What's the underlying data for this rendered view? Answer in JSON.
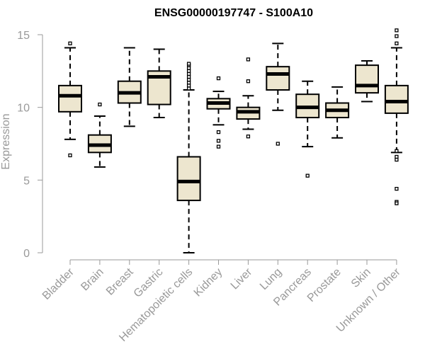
{
  "chart_data": {
    "type": "boxplot",
    "title": "ENSG00000197747 - S100A10",
    "xlabel": "",
    "ylabel": "Expression",
    "ylim": [
      0,
      15
    ],
    "yticks": [
      0,
      5,
      10,
      15
    ],
    "box_fill": "#ede6cf",
    "median_color": "#000000",
    "axis_color": "#999999",
    "categories": [
      "Bladder",
      "Brain",
      "Breast",
      "Gastric",
      "Hematopoietic cells",
      "Kidney",
      "Liver",
      "Lung",
      "Pancreas",
      "Prostate",
      "Skin",
      "Unknown / Other"
    ],
    "boxes": [
      {
        "name": "Bladder",
        "min": 7.8,
        "q1": 9.7,
        "median": 10.8,
        "q3": 11.5,
        "max": 14.1,
        "outliers": [
          14.4,
          6.7
        ]
      },
      {
        "name": "Brain",
        "min": 5.9,
        "q1": 6.9,
        "median": 7.4,
        "q3": 8.1,
        "max": 9.4,
        "outliers": [
          10.2
        ]
      },
      {
        "name": "Breast",
        "min": 8.7,
        "q1": 10.3,
        "median": 11.0,
        "q3": 11.8,
        "max": 14.1,
        "outliers": []
      },
      {
        "name": "Gastric",
        "min": 9.3,
        "q1": 10.2,
        "median": 12.1,
        "q3": 12.5,
        "max": 14.0,
        "outliers": []
      },
      {
        "name": "Hematopoietic cells",
        "min": 0.0,
        "q1": 3.6,
        "median": 4.9,
        "q3": 6.6,
        "max": 11.2,
        "outliers": [
          11.3,
          11.5,
          11.7,
          11.9,
          12.1,
          12.3,
          12.5,
          12.7,
          12.9,
          13.0
        ]
      },
      {
        "name": "Kidney",
        "min": 8.8,
        "q1": 9.9,
        "median": 10.3,
        "q3": 10.6,
        "max": 11.1,
        "outliers": [
          12.0,
          8.3,
          7.7,
          7.3
        ]
      },
      {
        "name": "Liver",
        "min": 8.5,
        "q1": 9.2,
        "median": 9.7,
        "q3": 10.0,
        "max": 10.8,
        "outliers": [
          11.8,
          13.3,
          8.0
        ]
      },
      {
        "name": "Lung",
        "min": 9.8,
        "q1": 11.2,
        "median": 12.3,
        "q3": 12.8,
        "max": 14.4,
        "outliers": [
          7.5
        ]
      },
      {
        "name": "Pancreas",
        "min": 7.3,
        "q1": 9.3,
        "median": 10.0,
        "q3": 10.9,
        "max": 11.8,
        "outliers": [
          5.3
        ]
      },
      {
        "name": "Prostate",
        "min": 7.9,
        "q1": 9.3,
        "median": 9.8,
        "q3": 10.3,
        "max": 11.4,
        "outliers": []
      },
      {
        "name": "Skin",
        "min": 10.4,
        "q1": 11.0,
        "median": 11.5,
        "q3": 12.9,
        "max": 13.2,
        "outliers": []
      },
      {
        "name": "Unknown / Other",
        "min": 6.9,
        "q1": 9.6,
        "median": 10.4,
        "q3": 11.5,
        "max": 14.1,
        "outliers": [
          15.3,
          14.9,
          14.4,
          7.0,
          6.6,
          6.4,
          4.4,
          3.5,
          3.4
        ]
      }
    ]
  }
}
